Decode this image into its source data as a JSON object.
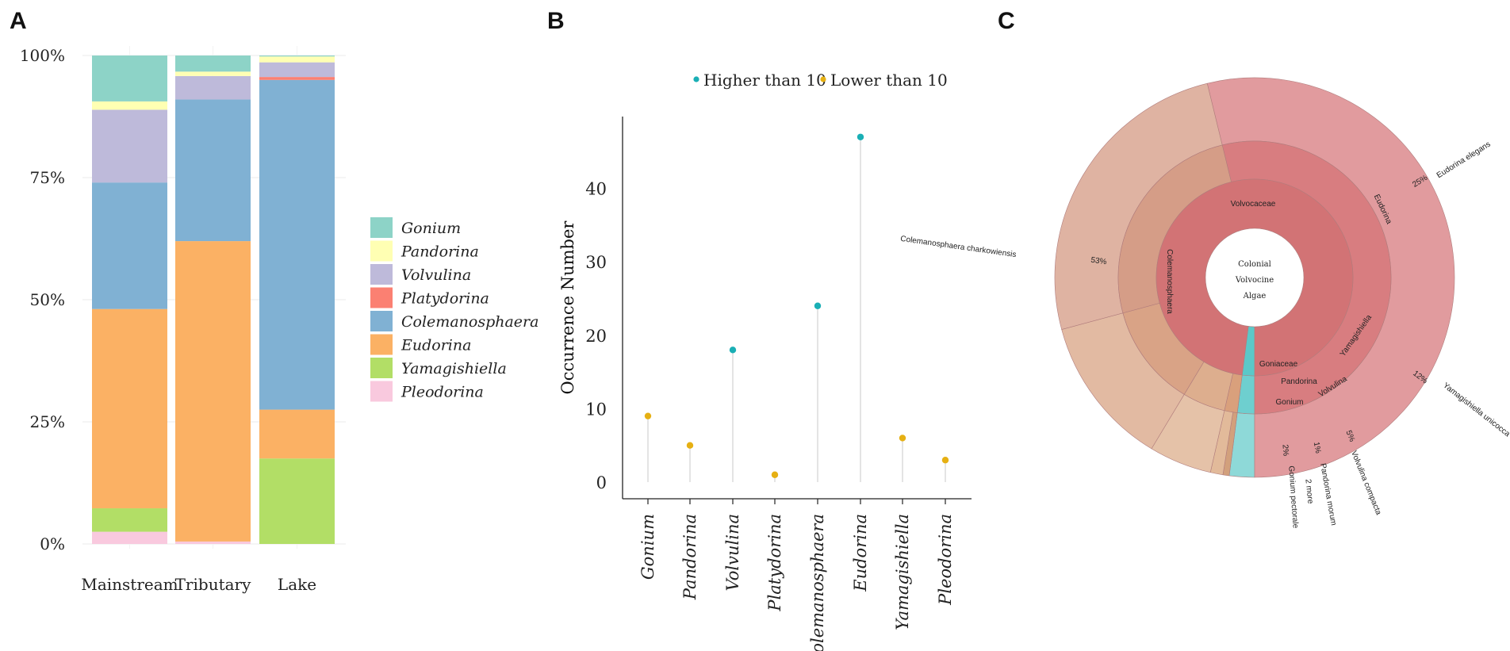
{
  "panel_labels": [
    "A",
    "B",
    "C"
  ],
  "chart_data": [
    {
      "type": "bar",
      "stacked": true,
      "categories": [
        "Mainstream",
        "Tributary",
        "Lake"
      ],
      "y_ticks": [
        "0%",
        "25%",
        "50%",
        "75%",
        "100%"
      ],
      "ylim": [
        0,
        100
      ],
      "legend_position": "right",
      "series": [
        {
          "name": "Pleodorina",
          "color": "#F9C9DE",
          "values": [
            2.5,
            0.5,
            0.0
          ]
        },
        {
          "name": "Yamagishiella",
          "color": "#B2DE66",
          "values": [
            4.8,
            0.0,
            17.5
          ]
        },
        {
          "name": "Eudorina",
          "color": "#FBB164",
          "values": [
            40.8,
            61.5,
            10.0
          ]
        },
        {
          "name": "Colemanosphaera",
          "color": "#80B1D3",
          "values": [
            25.9,
            29.0,
            67.5
          ]
        },
        {
          "name": "Platydorina",
          "color": "#FB8072",
          "values": [
            0.0,
            0.0,
            0.6
          ]
        },
        {
          "name": "Volvulina",
          "color": "#BEBADA",
          "values": [
            14.9,
            4.8,
            3.0
          ]
        },
        {
          "name": "Pandorina",
          "color": "#FFFFB3",
          "values": [
            1.7,
            0.9,
            1.2
          ]
        },
        {
          "name": "Gonium",
          "color": "#8DD3C7",
          "values": [
            9.4,
            3.3,
            0.2
          ]
        }
      ],
      "legend_order": [
        "Gonium",
        "Pandorina",
        "Volvulina",
        "Platydorina",
        "Colemanosphaera",
        "Eudorina",
        "Yamagishiella",
        "Pleodorina"
      ]
    },
    {
      "type": "scatter",
      "subtype": "lollipop",
      "categories": [
        "Gonium",
        "Pandorina",
        "Volvulina",
        "Platydorina",
        "Colemanosphaera",
        "Eudorina",
        "Yamagishiella",
        "Pleodorina"
      ],
      "values": [
        9,
        5,
        18,
        1,
        24,
        47,
        6,
        3
      ],
      "groups": [
        "Lower than 10",
        "Lower than 10",
        "Higher than 10",
        "Lower than 10",
        "Higher than 10",
        "Higher than 10",
        "Lower than 10",
        "Lower than 10"
      ],
      "legend": [
        {
          "name": "Higher than 10",
          "color": "#1AAFB5"
        },
        {
          "name": "Lower than 10",
          "color": "#E6B013"
        }
      ],
      "ylabel": "Occurrence Number",
      "y_ticks": [
        0,
        10,
        20,
        30,
        40
      ],
      "ylim": [
        -1,
        49
      ],
      "legend_position": "top"
    },
    {
      "type": "pie",
      "subtype": "sunburst",
      "center_label": [
        "Colonial",
        "Volvocine",
        "Algae"
      ],
      "families": [
        {
          "name": "Volvocaceae",
          "value": 98,
          "color": "#D27375"
        },
        {
          "name": "Goniaceae",
          "value": 2,
          "color": "#5BC8C8"
        }
      ],
      "genera": [
        {
          "name": "Gonium",
          "family": "Goniaceae",
          "value": 2,
          "color": "#6ECFCF"
        },
        {
          "name": "Pandorina",
          "family": "Volvocaceae",
          "value": 1.5,
          "color": "#D9A07C"
        },
        {
          "name": "Volvulina",
          "family": "Volvocaceae",
          "value": 5,
          "color": "#DDAE8E"
        },
        {
          "name": "Yamagishiella",
          "family": "Volvocaceae",
          "value": 12,
          "color": "#D9A386"
        },
        {
          "name": "Eudorina",
          "family": "Volvocaceae",
          "value": 25,
          "color": "#D59D87"
        },
        {
          "name": "Colemanosphaera",
          "family": "Volvocaceae",
          "value": 53,
          "color": "#D87D80"
        }
      ],
      "species": [
        {
          "name": "Gonium pectorale",
          "pct_label": "2%",
          "value": 2,
          "color": "#8ED9D8",
          "genus_color": "#8ED9D8"
        },
        {
          "name": "2 more",
          "pct_label": "",
          "value": 0.5,
          "color": "#D2A07C"
        },
        {
          "name": "Pandorina morum",
          "pct_label": "1%",
          "value": 1,
          "color": "#E2BA9A"
        },
        {
          "name": "Volvulina compacta",
          "pct_label": "5%",
          "value": 5,
          "color": "#E5C2A8"
        },
        {
          "name": "Yamagishiella unicocca",
          "pct_label": "12%",
          "value": 12,
          "color": "#E2BAA2"
        },
        {
          "name": "Eudorina elegans",
          "pct_label": "25%",
          "value": 25,
          "color": "#DFB3A2"
        },
        {
          "name": "Colemanosphaera charkowiensis",
          "pct_label": "53%",
          "value": 53,
          "color": "#E19B9E"
        }
      ]
    }
  ]
}
